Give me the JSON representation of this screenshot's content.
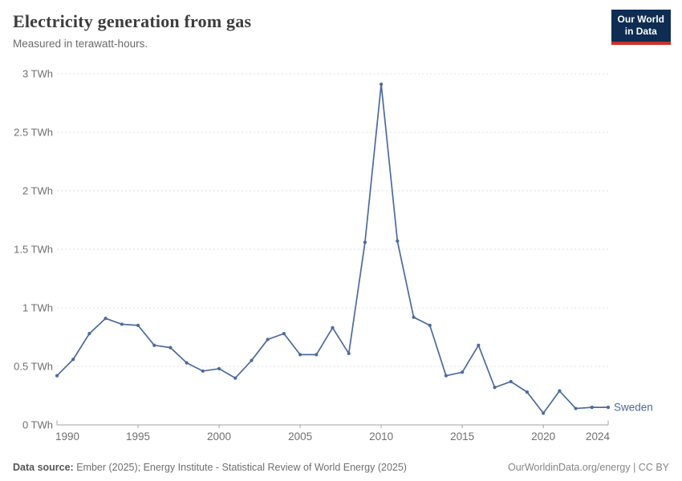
{
  "header": {
    "title": "Electricity generation from gas",
    "subtitle": "Measured in terawatt-hours."
  },
  "logo": {
    "line1": "Our World",
    "line2": "in Data",
    "bg_color": "#0f2d52",
    "bar_color": "#cc332a"
  },
  "chart_data": {
    "type": "line",
    "title": "Electricity generation from gas",
    "unit": "TWh",
    "grid": true,
    "legend_position": "end-of-line-label",
    "xlim": [
      1990,
      2024
    ],
    "ylim": [
      0,
      3
    ],
    "x_ticks": [
      1990,
      1995,
      2000,
      2005,
      2010,
      2015,
      2020,
      2024
    ],
    "y_ticks": [
      {
        "value": 0,
        "label": "0 TWh"
      },
      {
        "value": 0.5,
        "label": "0.5 TWh"
      },
      {
        "value": 1,
        "label": "1 TWh"
      },
      {
        "value": 1.5,
        "label": "1.5 TWh"
      },
      {
        "value": 2,
        "label": "2 TWh"
      },
      {
        "value": 2.5,
        "label": "2.5 TWh"
      },
      {
        "value": 3,
        "label": "3 TWh"
      }
    ],
    "series": [
      {
        "name": "Sweden",
        "color": "#4c6a9c",
        "x": [
          1990,
          1991,
          1992,
          1993,
          1994,
          1995,
          1996,
          1997,
          1998,
          1999,
          2000,
          2001,
          2002,
          2003,
          2004,
          2005,
          2006,
          2007,
          2008,
          2009,
          2010,
          2011,
          2012,
          2013,
          2014,
          2015,
          2016,
          2017,
          2018,
          2019,
          2020,
          2021,
          2022,
          2023,
          2024
        ],
        "values": [
          0.42,
          0.56,
          0.78,
          0.91,
          0.86,
          0.85,
          0.68,
          0.66,
          0.53,
          0.46,
          0.48,
          0.4,
          0.55,
          0.73,
          0.78,
          0.6,
          0.6,
          0.83,
          0.61,
          1.56,
          2.91,
          1.57,
          0.92,
          0.85,
          0.42,
          0.45,
          0.68,
          0.32,
          0.37,
          0.28,
          0.1,
          0.29,
          0.14,
          0.15,
          0.15
        ]
      }
    ]
  },
  "footer": {
    "source_label": "Data source:",
    "source_text": " Ember (2025); Energy Institute - Statistical Review of World Energy (2025)",
    "link_text": "OurWorldinData.org/energy | CC BY"
  }
}
